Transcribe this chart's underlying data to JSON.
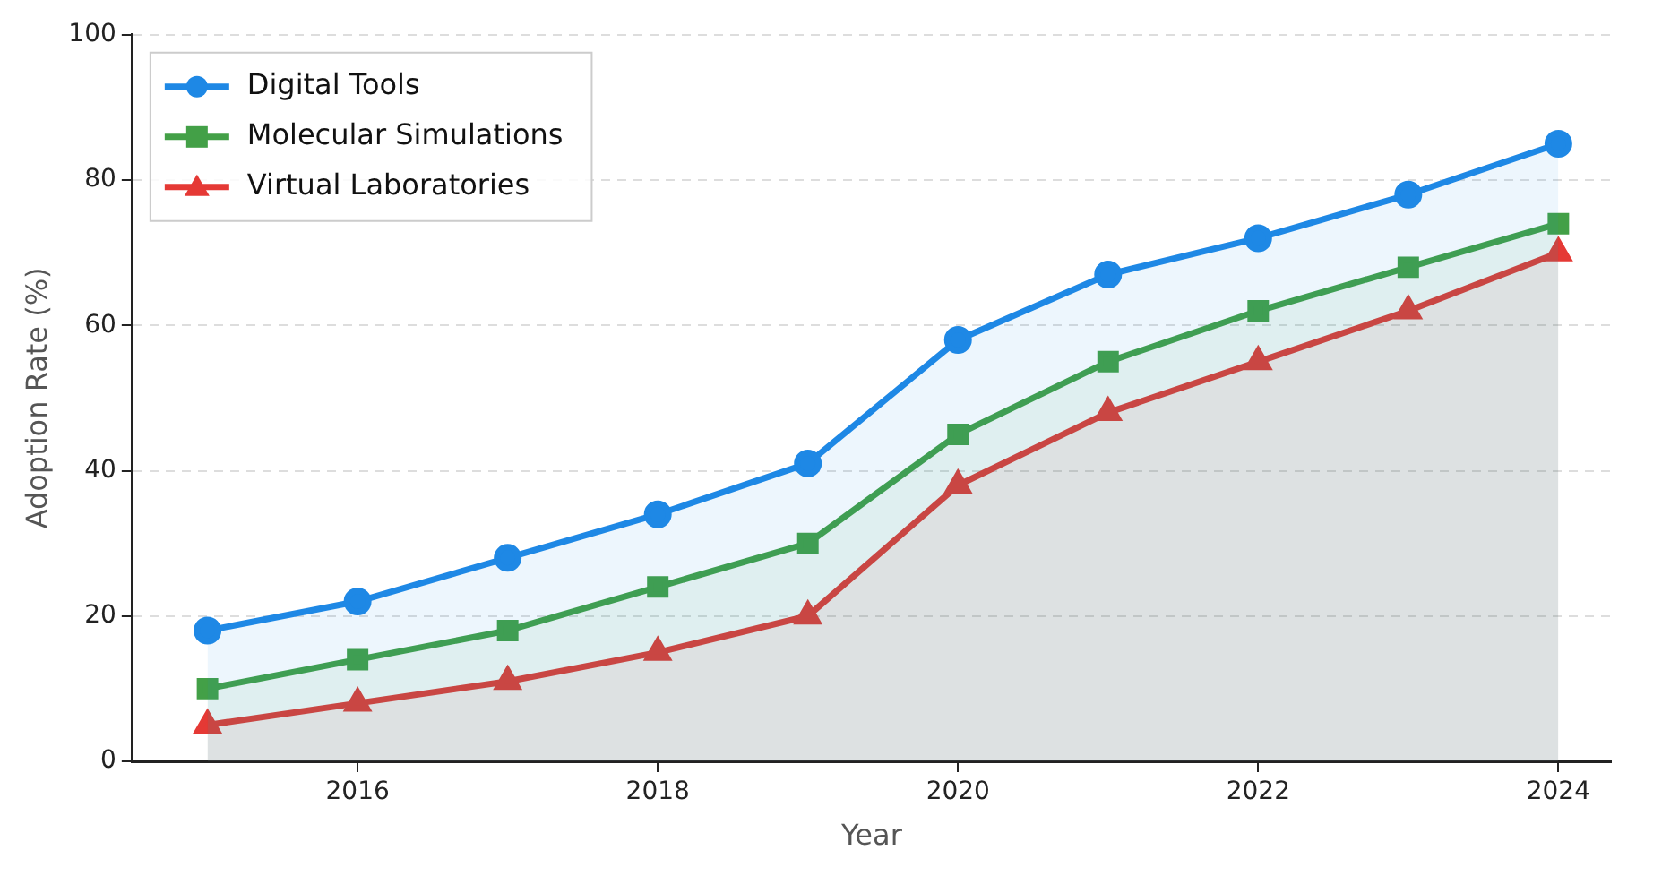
{
  "chart_data": {
    "type": "area",
    "xlabel": "Year",
    "ylabel": "Adoption Rate (%)",
    "x": [
      2015,
      2016,
      2017,
      2018,
      2019,
      2020,
      2021,
      2022,
      2023,
      2024
    ],
    "series": [
      {
        "name": "Digital Tools",
        "color": "#1e88e5",
        "marker": "circle",
        "values": [
          18,
          22,
          28,
          34,
          41,
          58,
          67,
          72,
          78,
          85
        ]
      },
      {
        "name": "Molecular Simulations",
        "color": "#43a047",
        "marker": "square",
        "values": [
          10,
          14,
          18,
          24,
          30,
          45,
          55,
          62,
          68,
          74
        ]
      },
      {
        "name": "Virtual Laboratories",
        "color": "#e53935",
        "marker": "triangle",
        "values": [
          5,
          8,
          11,
          15,
          20,
          38,
          48,
          55,
          62,
          70
        ]
      }
    ],
    "xlim": [
      2014.5,
      2024.35
    ],
    "xticks": [
      2016,
      2018,
      2020,
      2022,
      2024
    ],
    "ylim": [
      0,
      100
    ],
    "yticks": [
      0,
      20,
      40,
      60,
      80,
      100
    ],
    "grid": "y",
    "legend": "top left",
    "line_style": "solid"
  }
}
